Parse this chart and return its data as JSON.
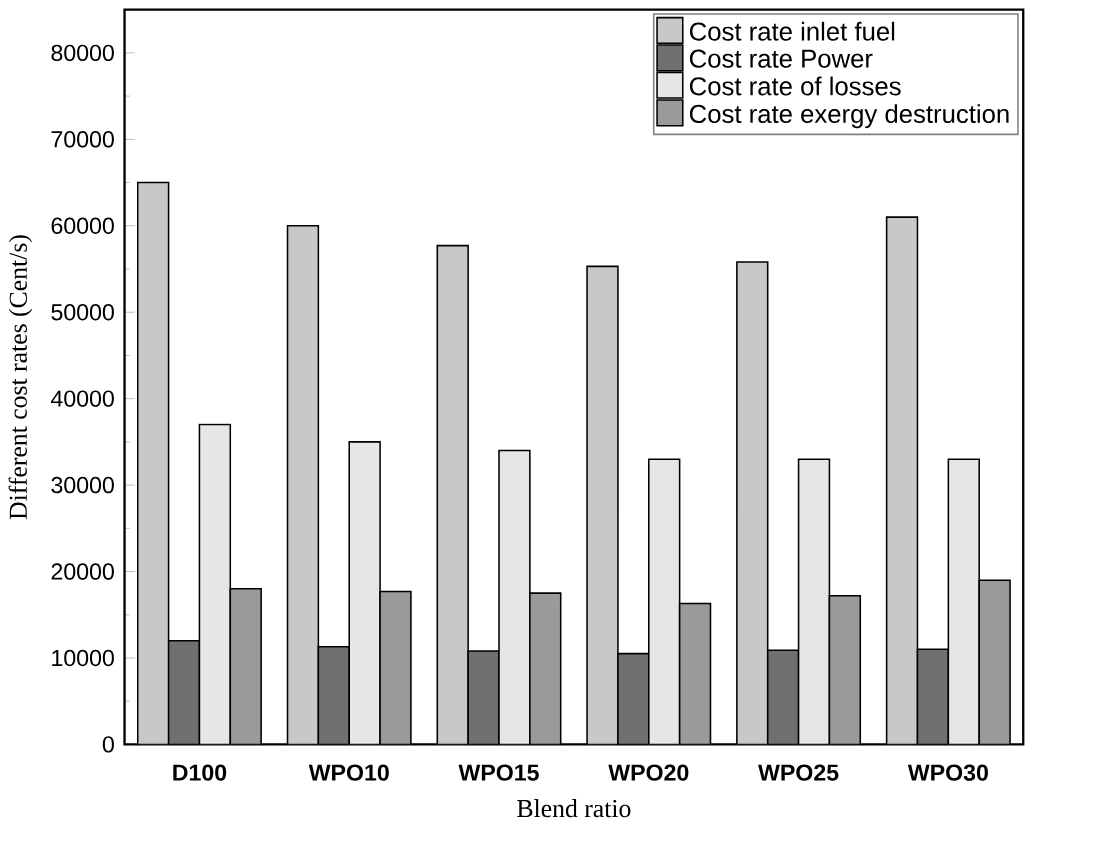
{
  "chart_data": {
    "type": "bar",
    "xlabel": "Blend ratio",
    "ylabel": "Different cost rates (Cent/s)",
    "categories": [
      "D100",
      "WPO10",
      "WPO15",
      "WPO20",
      "WPO25",
      "WPO30"
    ],
    "series": [
      {
        "name": "Cost rate inlet fuel",
        "color": "#c8c8c8",
        "values": [
          65000,
          60000,
          57700,
          55300,
          55800,
          61000
        ]
      },
      {
        "name": "Cost rate Power",
        "color": "#707070",
        "values": [
          12000,
          11300,
          10800,
          10500,
          10900,
          11000
        ]
      },
      {
        "name": "Cost rate of losses",
        "color": "#e6e6e6",
        "values": [
          37000,
          35000,
          34000,
          33000,
          33000,
          33000
        ]
      },
      {
        "name": "Cost rate exergy destruction",
        "color": "#9a9a9a",
        "values": [
          18000,
          17700,
          17500,
          16300,
          17200,
          19000
        ]
      }
    ],
    "ylim": [
      0,
      85000
    ],
    "yticks": [
      0,
      10000,
      20000,
      30000,
      40000,
      50000,
      60000,
      70000,
      80000
    ],
    "legend": "top right",
    "grid": false
  }
}
